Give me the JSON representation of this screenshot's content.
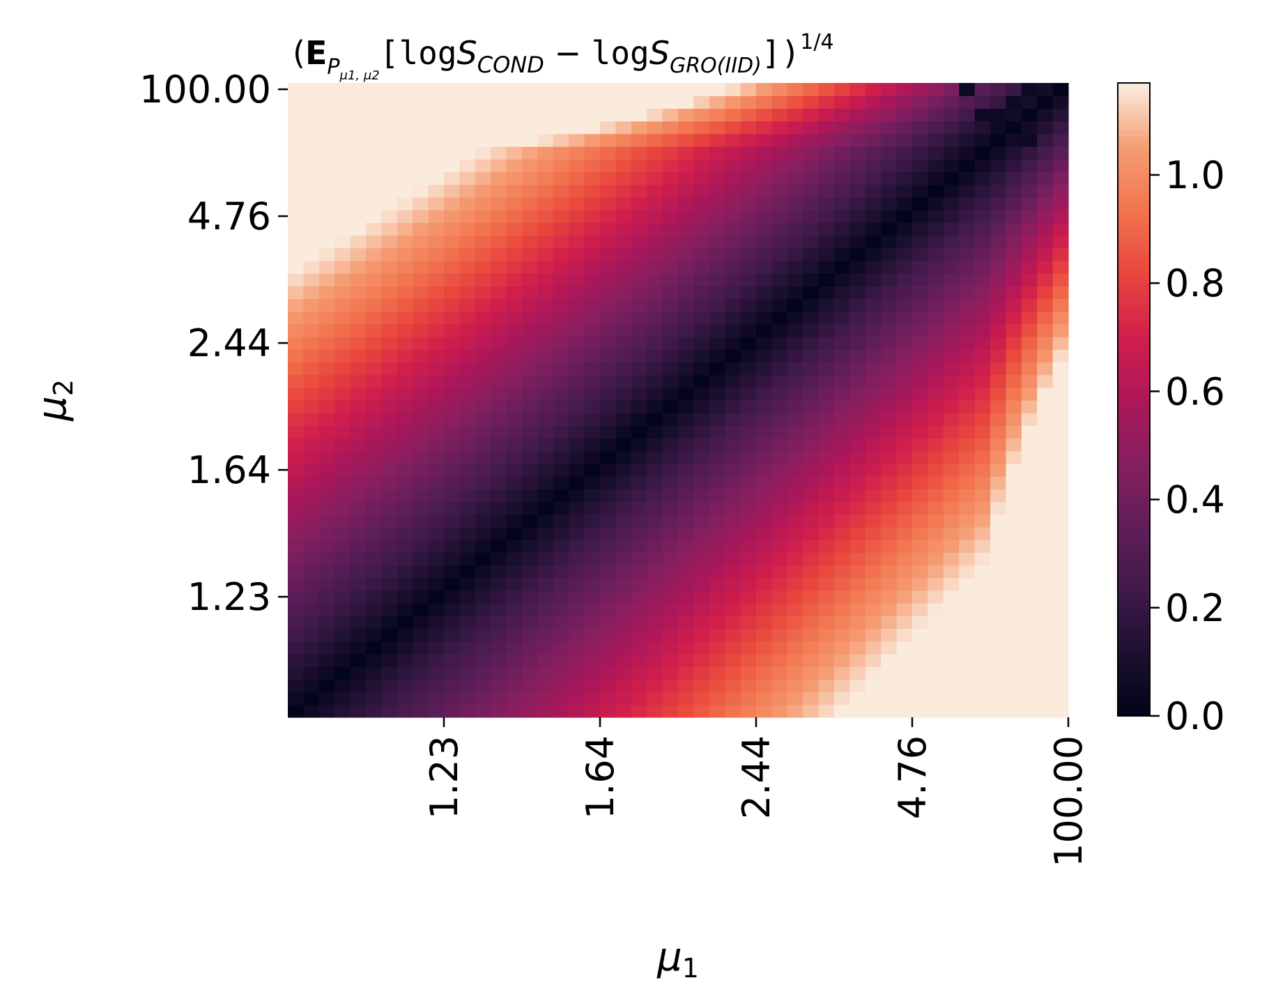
{
  "chart_data": {
    "type": "heatmap",
    "title": {
      "open": "(",
      "E": "E",
      "sub_P": "P",
      "sub_sub": "μ1, μ2",
      "bracket_open": "[",
      "log1": "log",
      "S1": "S",
      "sub1": "COND",
      "minus": " − ",
      "log2": "log",
      "S2": "S",
      "sub2": "GRO(IID)",
      "close": "])",
      "exponent": "1/4"
    },
    "xlabel": "μ1",
    "ylabel": "μ2",
    "grid_size": 50,
    "x_ticks": [
      {
        "label": "1.23",
        "index": 9.5
      },
      {
        "label": "1.64",
        "index": 19.5
      },
      {
        "label": "2.44",
        "index": 29.5
      },
      {
        "label": "4.76",
        "index": 39.5
      },
      {
        "label": "100.00",
        "index": 49.5
      }
    ],
    "y_ticks": [
      {
        "label": "1.23",
        "index": 9.5
      },
      {
        "label": "1.64",
        "index": 19.5
      },
      {
        "label": "2.44",
        "index": 29.5
      },
      {
        "label": "4.76",
        "index": 39.5
      },
      {
        "label": "100.00",
        "index": 49.5
      }
    ],
    "colorbar": {
      "min": 0.0,
      "max": 1.17,
      "ticks": [
        "0.0",
        "0.2",
        "0.4",
        "0.6",
        "0.8",
        "1.0"
      ],
      "tick_values": [
        0.0,
        0.2,
        0.4,
        0.6,
        0.8,
        1.0
      ]
    },
    "colormap": "rocket",
    "grid": false
  }
}
